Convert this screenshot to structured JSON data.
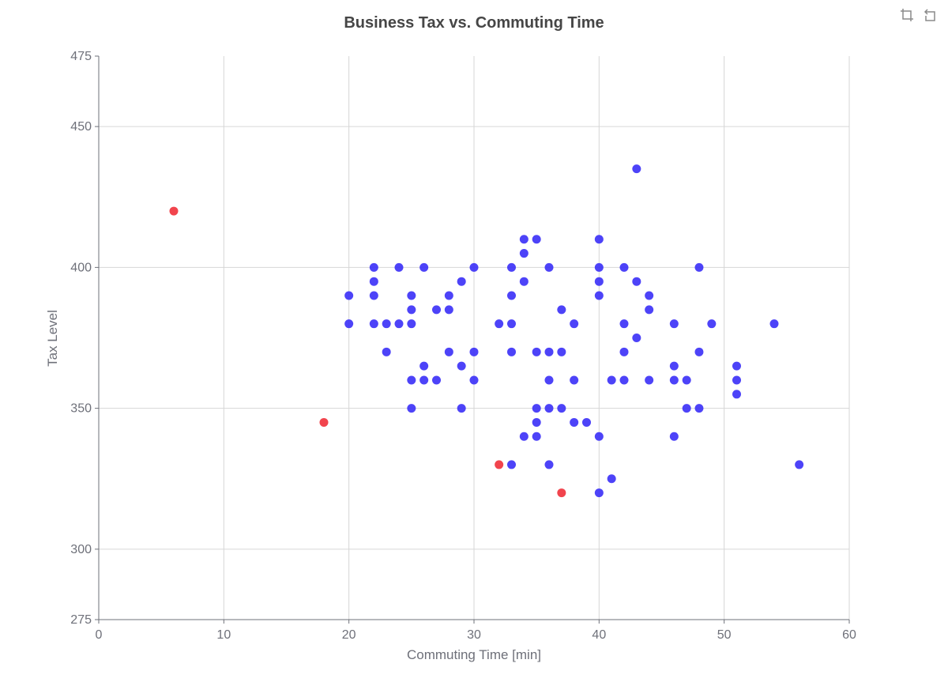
{
  "chart_data": {
    "type": "scatter",
    "title": "Business Tax vs. Commuting Time",
    "xlabel": "Commuting Time [min]",
    "ylabel": "Tax Level",
    "xlim": [
      0,
      60
    ],
    "ylim": [
      275,
      475
    ],
    "x_ticks": [
      0,
      10,
      20,
      30,
      40,
      50,
      60
    ],
    "y_ticks": [
      275,
      300,
      350,
      400,
      450,
      475
    ],
    "grid": true,
    "colors": {
      "main": "#3a2ff7",
      "outlier": "#f0303a"
    },
    "series": [
      {
        "points": [
          [
            20,
            390
          ],
          [
            20,
            380
          ],
          [
            22,
            400
          ],
          [
            22,
            395
          ],
          [
            22,
            390
          ],
          [
            22,
            380
          ],
          [
            23,
            380
          ],
          [
            23,
            370
          ],
          [
            24,
            400
          ],
          [
            24,
            380
          ],
          [
            25,
            390
          ],
          [
            25,
            385
          ],
          [
            25,
            380
          ],
          [
            25,
            360
          ],
          [
            25,
            350
          ],
          [
            26,
            400
          ],
          [
            26,
            365
          ],
          [
            26,
            360
          ],
          [
            27,
            385
          ],
          [
            27,
            360
          ],
          [
            28,
            390
          ],
          [
            28,
            385
          ],
          [
            28,
            370
          ],
          [
            29,
            395
          ],
          [
            29,
            365
          ],
          [
            29,
            350
          ],
          [
            30,
            400
          ],
          [
            30,
            370
          ],
          [
            30,
            360
          ],
          [
            32,
            380
          ],
          [
            33,
            400
          ],
          [
            33,
            390
          ],
          [
            33,
            380
          ],
          [
            33,
            370
          ],
          [
            33,
            330
          ],
          [
            34,
            410
          ],
          [
            34,
            405
          ],
          [
            34,
            395
          ],
          [
            34,
            340
          ],
          [
            35,
            410
          ],
          [
            35,
            370
          ],
          [
            35,
            350
          ],
          [
            35,
            345
          ],
          [
            35,
            340
          ],
          [
            36,
            400
          ],
          [
            36,
            370
          ],
          [
            36,
            360
          ],
          [
            36,
            350
          ],
          [
            36,
            330
          ],
          [
            37,
            385
          ],
          [
            37,
            370
          ],
          [
            37,
            350
          ],
          [
            38,
            380
          ],
          [
            38,
            360
          ],
          [
            38,
            345
          ],
          [
            39,
            345
          ],
          [
            40,
            410
          ],
          [
            40,
            400
          ],
          [
            40,
            395
          ],
          [
            40,
            390
          ],
          [
            40,
            340
          ],
          [
            40,
            320
          ],
          [
            41,
            360
          ],
          [
            41,
            325
          ],
          [
            42,
            400
          ],
          [
            42,
            380
          ],
          [
            42,
            370
          ],
          [
            42,
            360
          ],
          [
            43,
            435
          ],
          [
            43,
            395
          ],
          [
            43,
            375
          ],
          [
            44,
            390
          ],
          [
            44,
            385
          ],
          [
            44,
            360
          ],
          [
            46,
            380
          ],
          [
            46,
            365
          ],
          [
            46,
            360
          ],
          [
            46,
            340
          ],
          [
            47,
            360
          ],
          [
            47,
            350
          ],
          [
            48,
            400
          ],
          [
            48,
            370
          ],
          [
            48,
            350
          ],
          [
            49,
            380
          ],
          [
            51,
            365
          ],
          [
            51,
            360
          ],
          [
            51,
            355
          ],
          [
            54,
            380
          ],
          [
            56,
            330
          ]
        ],
        "color": "#3a2ff7"
      },
      {
        "points": [
          [
            6,
            420
          ],
          [
            18,
            345
          ],
          [
            32,
            330
          ],
          [
            37,
            320
          ]
        ],
        "color": "#f0303a"
      }
    ]
  },
  "toolbox": {
    "icons": [
      "zoom-icon",
      "restore-icon"
    ]
  }
}
